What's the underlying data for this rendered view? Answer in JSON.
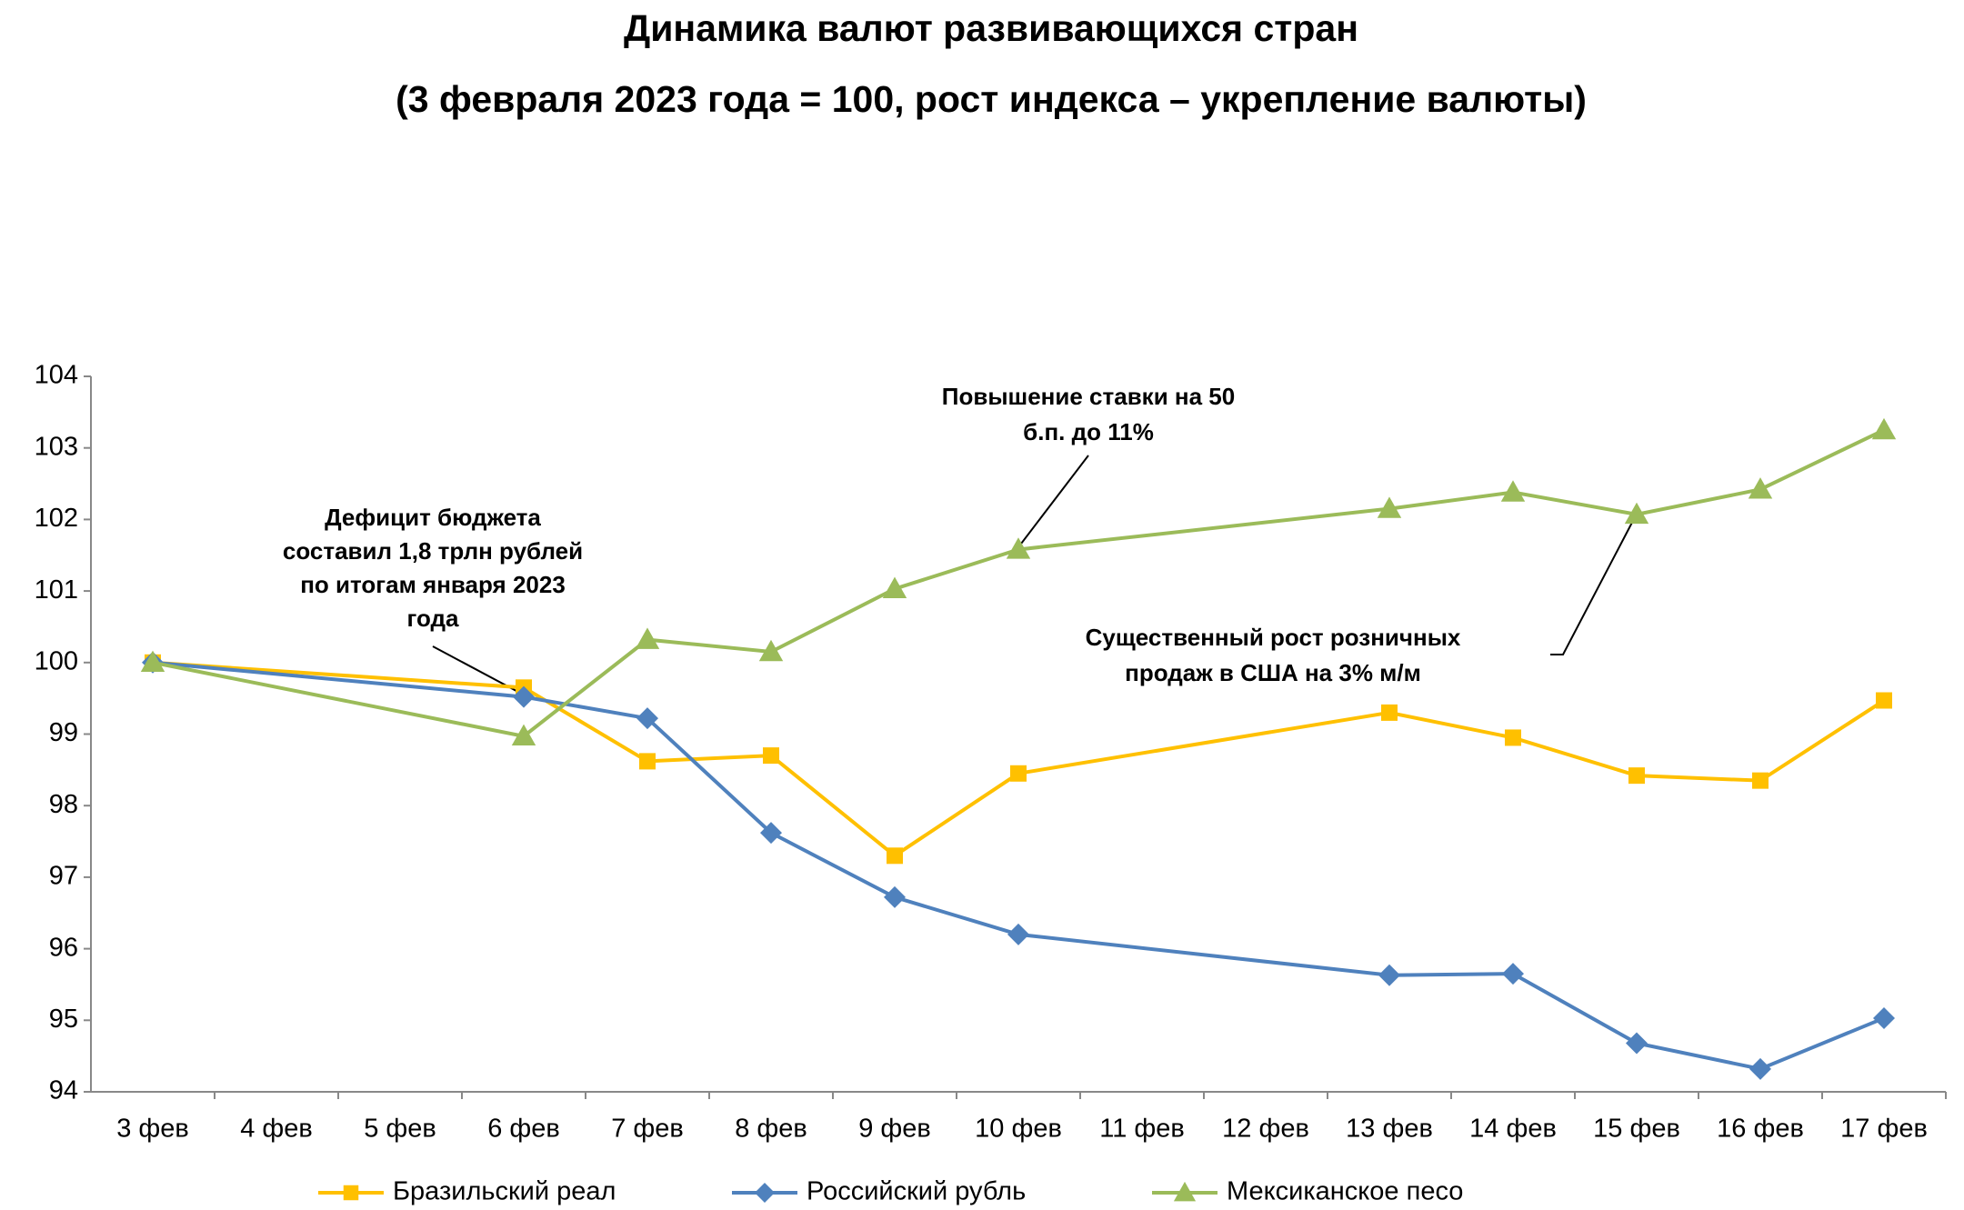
{
  "chart_data": {
    "type": "line",
    "title": "Динамика валют развивающихся стран",
    "subtitle": "(3 февраля 2023 года = 100, рост индекса – укрепление валюты)",
    "categories": [
      "3 фев",
      "4 фев",
      "5 фев",
      "6 фев",
      "7 фев",
      "8 фев",
      "9 фев",
      "10 фев",
      "11 фев",
      "12 фев",
      "13 фев",
      "14 фев",
      "15 фев",
      "16 фев",
      "17 фев"
    ],
    "ylim": [
      94,
      104
    ],
    "yticks": [
      94,
      95,
      96,
      97,
      98,
      99,
      100,
      101,
      102,
      103,
      104
    ],
    "grid": false,
    "legend": "bottom",
    "series": [
      {
        "name": "Бразильский реал",
        "color": "#FFC000",
        "marker": "square",
        "x": [
          "3 фев",
          "6 фев",
          "7 фев",
          "8 фев",
          "9 фев",
          "10 фев",
          "13 фев",
          "14 фев",
          "15 фев",
          "16 фев",
          "17 фев"
        ],
        "values": [
          100,
          99.65,
          98.62,
          98.7,
          97.3,
          98.45,
          99.3,
          98.95,
          98.42,
          98.35,
          99.47
        ]
      },
      {
        "name": "Российский рубль",
        "color": "#4F81BD",
        "marker": "diamond",
        "x": [
          "3 фев",
          "6 фев",
          "7 фев",
          "8 фев",
          "9 фев",
          "10 фев",
          "13 фев",
          "14 фев",
          "15 фев",
          "16 фев",
          "17 фев"
        ],
        "values": [
          100,
          99.52,
          99.22,
          97.62,
          96.72,
          96.2,
          95.63,
          95.65,
          94.68,
          94.32,
          95.03
        ]
      },
      {
        "name": "Мексиканское песо",
        "color": "#9BBB59",
        "marker": "triangle",
        "x": [
          "3 фев",
          "6 фев",
          "7 фев",
          "8 фев",
          "9 фев",
          "10 фев",
          "13 фев",
          "14 фев",
          "15 фев",
          "16 фев",
          "17 фев"
        ],
        "values": [
          100,
          98.97,
          100.32,
          100.15,
          101.03,
          101.58,
          102.15,
          102.38,
          102.07,
          102.42,
          103.25
        ]
      }
    ],
    "annotations": [
      {
        "lines": [
          "Дефицит бюджета",
          "составил 1,8 трлн рублей",
          "по итогам января 2023",
          "года"
        ]
      },
      {
        "lines": [
          "Повышение ставки на 50",
          "б.п. до 11%"
        ]
      },
      {
        "lines": [
          "Существенный рост розничных",
          "продаж в США на 3% м/м"
        ]
      }
    ]
  }
}
